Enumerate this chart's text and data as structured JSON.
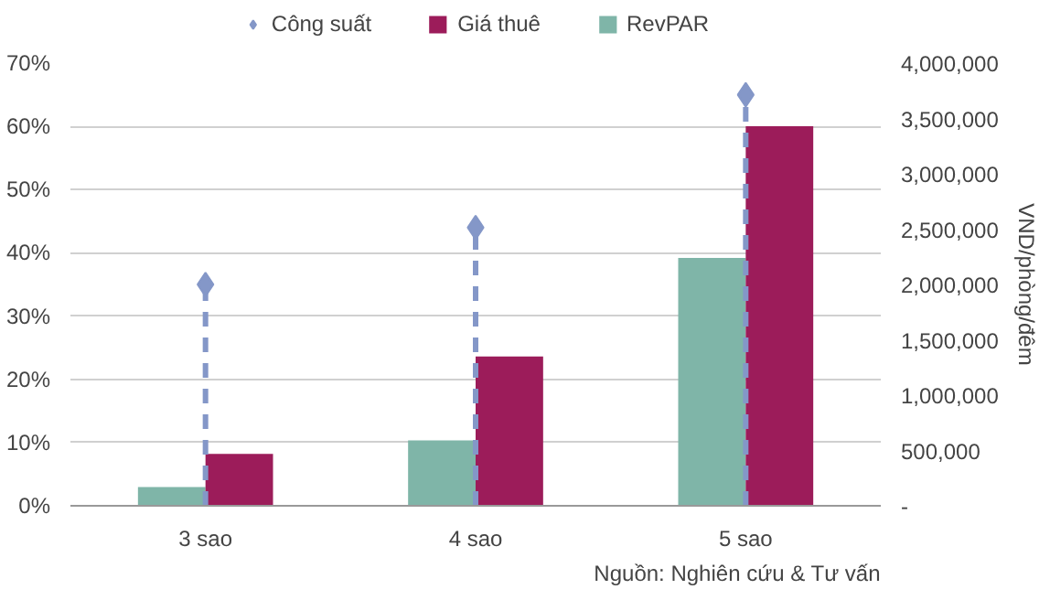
{
  "chart_data": {
    "type": "bar",
    "categories": [
      "3 sao",
      "4 sao",
      "5 sao"
    ],
    "series": [
      {
        "name": "RevPAR",
        "color": "#7fb5a8",
        "values": [
          170000,
          590000,
          2240000
        ],
        "axis": "y2"
      },
      {
        "name": "Giá thuê",
        "color": "#9c1c5a",
        "values": [
          470000,
          1350000,
          3430000
        ],
        "axis": "y2"
      },
      {
        "name": "Công suất",
        "type": "scatter",
        "marker": "diamond",
        "color": "#8497c8",
        "values": [
          35,
          44,
          65
        ],
        "errors": [
          [
            0,
            35
          ],
          [
            0,
            44
          ],
          [
            0,
            65
          ]
        ],
        "line_style": "dashed"
      }
    ],
    "ylim": [
      0,
      70
    ],
    "yticks": [
      {
        "value": 0,
        "label": "0%"
      },
      {
        "value": 10,
        "label": "10%"
      },
      {
        "value": 20,
        "label": "20%"
      },
      {
        "value": 30,
        "label": "30%"
      },
      {
        "value": 40,
        "label": "40%"
      },
      {
        "value": 50,
        "label": "50%"
      },
      {
        "value": 60,
        "label": "60%"
      },
      {
        "value": 70,
        "label": "70%"
      }
    ],
    "y2lim": [
      0,
      4000000
    ],
    "y2ticks": [
      {
        "value": 0,
        "label": "-"
      },
      {
        "value": 500000,
        "label": "500,000"
      },
      {
        "value": 1000000,
        "label": "1,000,000"
      },
      {
        "value": 1500000,
        "label": "1,500,000"
      },
      {
        "value": 2000000,
        "label": "2,000,000"
      },
      {
        "value": 2500000,
        "label": "2,500,000"
      },
      {
        "value": 3000000,
        "label": "3,000,000"
      },
      {
        "value": 3500000,
        "label": "3,500,000"
      },
      {
        "value": 4000000,
        "label": "4,000,000"
      }
    ],
    "y2label": "VND/phòng/đêm",
    "grid": "y",
    "legend": "top",
    "annotations": [
      "Nguồn: Nghiên cứu & Tư vấn"
    ]
  }
}
